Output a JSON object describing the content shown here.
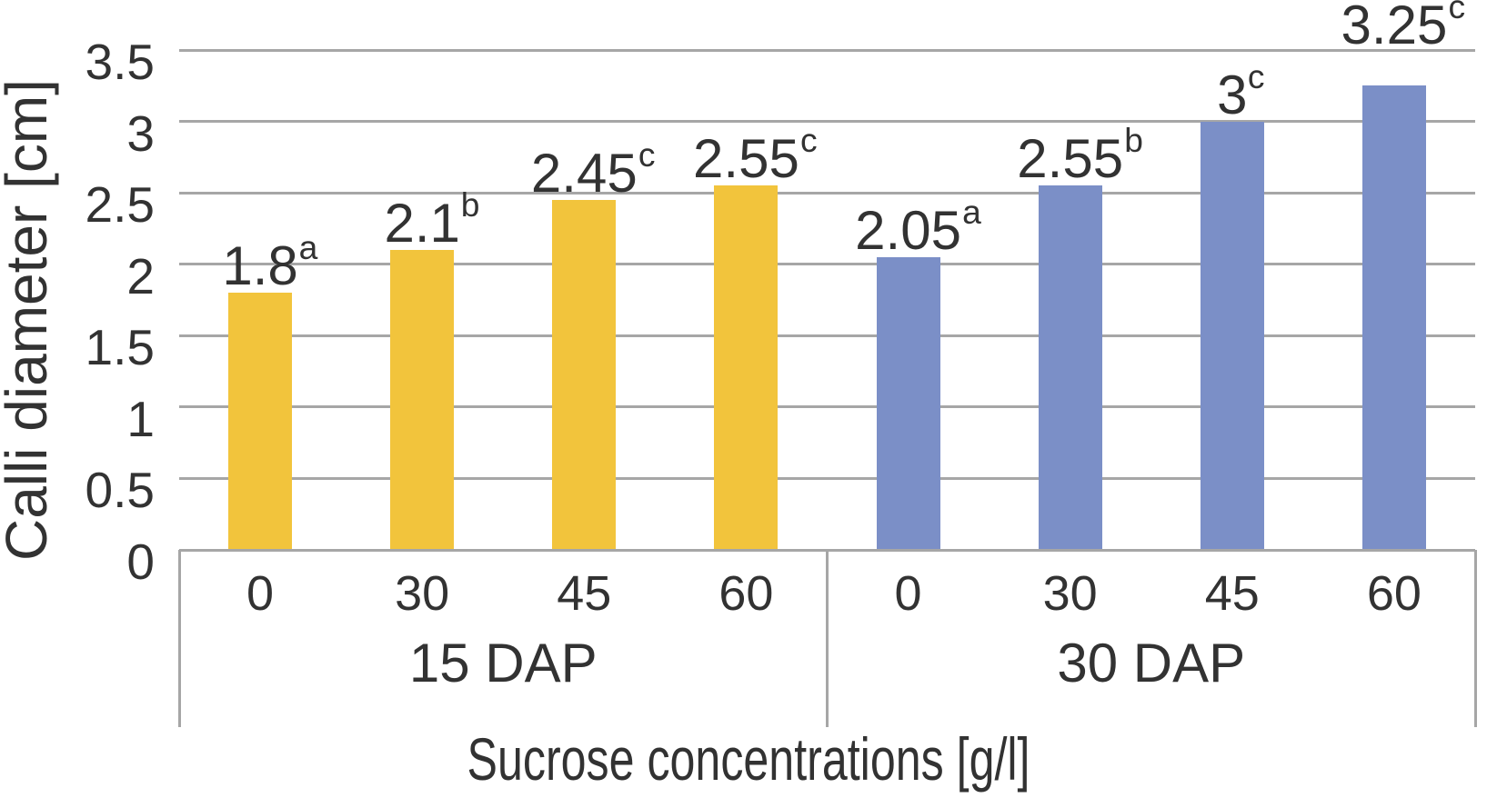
{
  "chart_data": {
    "type": "bar",
    "title": "",
    "ylabel": "Calli diameter [cm]",
    "xlabel": "Sucrose concentrations [g/l]",
    "ylim": [
      0,
      3.5
    ],
    "grid": true,
    "legend": false,
    "yticks": [
      {
        "value": 0,
        "label": "0"
      },
      {
        "value": 0.5,
        "label": "0.5"
      },
      {
        "value": 1,
        "label": "1"
      },
      {
        "value": 1.5,
        "label": "1.5"
      },
      {
        "value": 2,
        "label": "2"
      },
      {
        "value": 2.5,
        "label": "2.5"
      },
      {
        "value": 3,
        "label": "3"
      },
      {
        "value": 3.5,
        "label": "3.5"
      }
    ],
    "categories": [
      "0",
      "30",
      "45",
      "60"
    ],
    "groups": [
      {
        "label": "15 DAP",
        "color": "#F2C43C",
        "values": [
          1.8,
          2.1,
          2.45,
          2.55
        ],
        "data_labels": [
          "1.8",
          "2.1",
          "2.45",
          "2.55"
        ],
        "superscripts": [
          "a",
          "b",
          "c",
          "c"
        ]
      },
      {
        "label": "30 DAP",
        "color": "#7B8FC7",
        "values": [
          2.05,
          2.55,
          3,
          3.25
        ],
        "data_labels": [
          "2.05",
          "2.55",
          "3",
          "3.25"
        ],
        "superscripts": [
          "a",
          "b",
          "c",
          "c"
        ]
      }
    ],
    "colors": {
      "gridline": "#A6A6A6",
      "axis_line": "#A6A6A6",
      "text": "#323232",
      "background": "#FFFFFF"
    }
  }
}
